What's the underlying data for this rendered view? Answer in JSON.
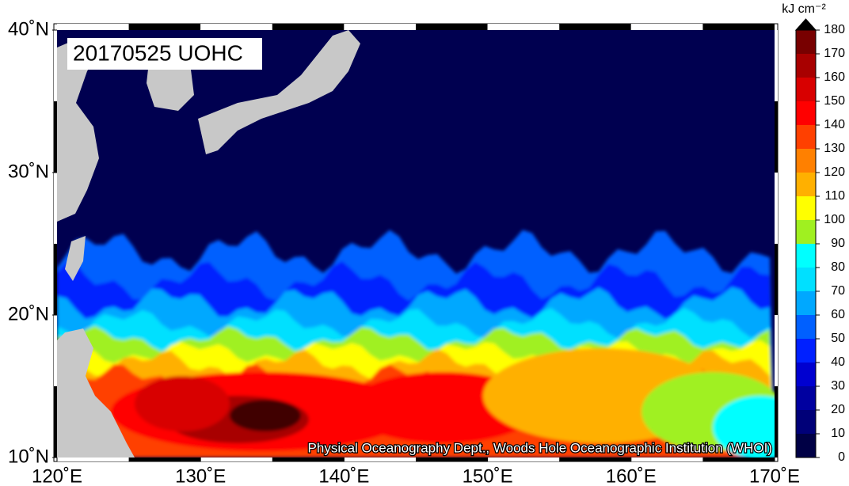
{
  "map": {
    "title": "20170525 UOHC",
    "credit": "Physical Oceanography Dept., Woods Hole Oceanographic Institution (WHOI)",
    "lonlim": [
      120,
      170
    ],
    "latlim": [
      10,
      40
    ],
    "lonticks": [
      {
        "value": 120,
        "label": "120˚E"
      },
      {
        "value": 130,
        "label": "130˚E"
      },
      {
        "value": 140,
        "label": "140˚E"
      },
      {
        "value": 150,
        "label": "150˚E"
      },
      {
        "value": 160,
        "label": "160˚E"
      },
      {
        "value": 170,
        "label": "170˚E"
      }
    ],
    "latticks": [
      {
        "value": 10,
        "label": "10˚N"
      },
      {
        "value": 20,
        "label": "20˚N"
      },
      {
        "value": 30,
        "label": "30˚N"
      },
      {
        "value": 40,
        "label": "40˚N"
      }
    ]
  },
  "colorbar": {
    "unit": "kJ cm⁻²",
    "lim": [
      0,
      180
    ],
    "ticks": [
      0,
      10,
      20,
      30,
      40,
      50,
      60,
      70,
      80,
      90,
      100,
      110,
      120,
      130,
      140,
      150,
      160,
      170,
      180
    ],
    "colors": [
      "#000045",
      "#000078",
      "#0000a0",
      "#0000d0",
      "#0020ff",
      "#0060ff",
      "#00a8ff",
      "#00e0ff",
      "#00ffff",
      "#a0f020",
      "#ffff00",
      "#ffb000",
      "#ff8000",
      "#ff4000",
      "#ff0000",
      "#d80000",
      "#a80000",
      "#780000",
      "#400000"
    ],
    "over_color": "#000000"
  }
}
